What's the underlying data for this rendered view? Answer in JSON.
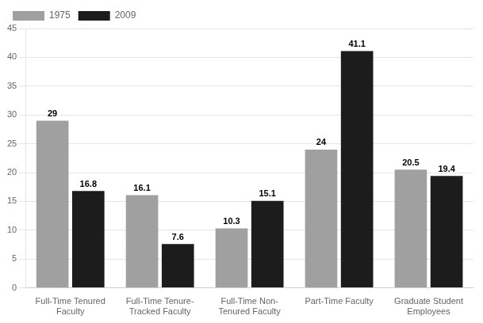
{
  "chart_data": {
    "type": "bar",
    "categories": [
      "Full-Time Tenured\nFaculty",
      "Full-Time Tenure-\nTracked Faculty",
      "Full-Time Non-\nTenured Faculty",
      "Part-Time Faculty",
      "Graduate Student\nEmployees"
    ],
    "series": [
      {
        "name": "1975",
        "color": "#a0a0a0",
        "values": [
          29,
          16.1,
          10.3,
          24,
          20.5
        ]
      },
      {
        "name": "2009",
        "color": "#1c1c1c",
        "values": [
          16.8,
          7.6,
          15.1,
          41.1,
          19.4
        ]
      }
    ],
    "ylim": [
      0,
      45
    ],
    "yticks": [
      0,
      5,
      10,
      15,
      20,
      25,
      30,
      35,
      40,
      45
    ],
    "grid": true,
    "legend": "upper left",
    "data_labels": true
  }
}
